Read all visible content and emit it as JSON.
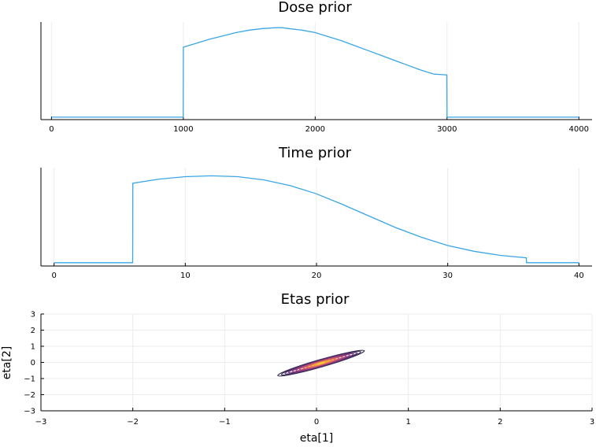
{
  "colors": {
    "series": "#3aa6e6",
    "grid": "#ececec",
    "axis": "#000000",
    "contour_levels": [
      "#2e2a4a",
      "#3d2f5c",
      "#532f6e",
      "#6d3278",
      "#873879",
      "#a2407a",
      "#bb4b73",
      "#d05a65",
      "#e07053",
      "#eb8a43",
      "#f2a73a",
      "#f6c83f"
    ]
  },
  "chart_data": [
    {
      "type": "line",
      "title": "Dose prior",
      "xlabel": "",
      "ylabel": "",
      "xlim": [
        -80,
        4100
      ],
      "xticks": [
        0,
        1000,
        2000,
        3000,
        4000
      ],
      "xtick_labels": [
        "0",
        "1000",
        "2000",
        "3000",
        "4000"
      ],
      "yticks_shown": false,
      "grid": true,
      "legend": "none",
      "ylim": [
        0,
        1.2
      ],
      "series": [
        {
          "x": [
            0,
            999,
            1000,
            1100,
            1200,
            1300,
            1400,
            1500,
            1600,
            1700,
            1750,
            1800,
            1900,
            2000,
            2100,
            2200,
            2300,
            2400,
            2500,
            2600,
            2700,
            2800,
            2900,
            2999,
            3000,
            3001,
            4000
          ],
          "y": [
            0.03,
            0.03,
            0.89,
            0.94,
            0.99,
            1.03,
            1.07,
            1.1,
            1.12,
            1.13,
            1.13,
            1.12,
            1.1,
            1.07,
            1.02,
            0.97,
            0.91,
            0.85,
            0.79,
            0.73,
            0.67,
            0.61,
            0.56,
            0.55,
            0.03,
            0.03,
            0.03
          ]
        }
      ]
    },
    {
      "type": "line",
      "title": "Time prior",
      "xlabel": "",
      "ylabel": "",
      "xlim": [
        -1,
        41
      ],
      "xticks": [
        0,
        10,
        20,
        30,
        40
      ],
      "xtick_labels": [
        "0",
        "10",
        "20",
        "30",
        "40"
      ],
      "yticks_shown": false,
      "grid": true,
      "legend": "none",
      "ylim": [
        0,
        1.2
      ],
      "series": [
        {
          "x": [
            0,
            5.99,
            6,
            8,
            10,
            12,
            14,
            16,
            18,
            20,
            22,
            24,
            26,
            28,
            30,
            32,
            34,
            35.99,
            36,
            40
          ],
          "y": [
            0.04,
            0.04,
            1.01,
            1.06,
            1.09,
            1.1,
            1.09,
            1.05,
            0.98,
            0.88,
            0.75,
            0.61,
            0.47,
            0.35,
            0.25,
            0.18,
            0.13,
            0.1,
            0.04,
            0.04
          ]
        }
      ]
    },
    {
      "type": "contour",
      "title": "Etas prior",
      "xlabel": "eta[1]",
      "ylabel": "eta[2]",
      "xlim": [
        -3,
        3
      ],
      "ylim": [
        -3,
        3
      ],
      "xticks": [
        -3,
        -2,
        -1,
        0,
        1,
        2,
        3
      ],
      "xtick_labels": [
        "−3",
        "−2",
        "−1",
        "0",
        "1",
        "2",
        "3"
      ],
      "yticks": [
        -3,
        -2,
        -1,
        0,
        1,
        2,
        3
      ],
      "ytick_labels": [
        "−3",
        "−2",
        "−1",
        "0",
        "1",
        "2",
        "3"
      ],
      "grid": true,
      "legend": "none",
      "distribution": {
        "center": [
          0.05,
          -0.05
        ],
        "outer_semi_axis_major": 0.49,
        "outer_semi_axis_minor": 0.23,
        "rotation_deg": 16,
        "levels": 12
      }
    }
  ]
}
